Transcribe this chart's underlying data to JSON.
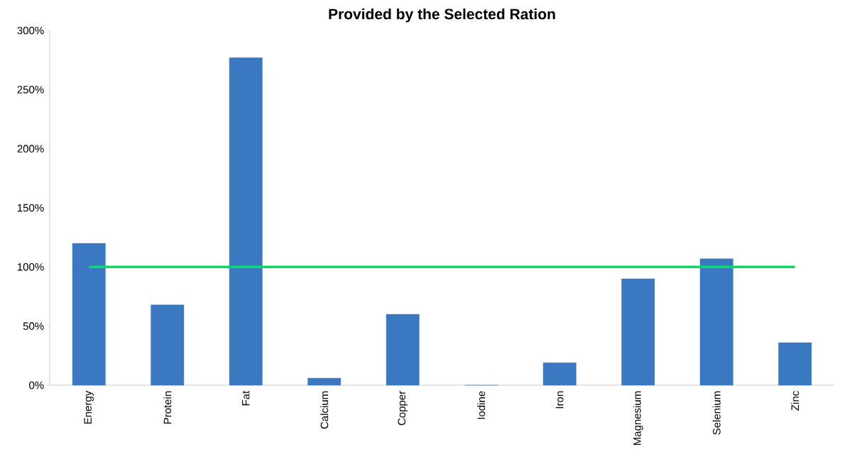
{
  "chart_data": {
    "type": "bar",
    "title": "Provided by the Selected Ration",
    "categories": [
      "Energy",
      "Protein",
      "Fat",
      "Calcium",
      "Copper",
      "Iodine",
      "Iron",
      "Magnesium",
      "Selenium",
      "Zinc"
    ],
    "values": [
      120,
      68,
      277,
      6,
      60,
      0,
      19,
      90,
      107,
      36
    ],
    "color": "#3a78c2",
    "ylim": [
      0,
      300
    ],
    "yticks": [
      {
        "value": 0,
        "label": "0%"
      },
      {
        "value": 50,
        "label": "50%"
      },
      {
        "value": 100,
        "label": "100%"
      },
      {
        "value": 150,
        "label": "150%"
      },
      {
        "value": 200,
        "label": "200%"
      },
      {
        "value": 250,
        "label": "250%"
      },
      {
        "value": 300,
        "label": "300%"
      }
    ],
    "ref_lines": [
      {
        "axis": "y",
        "value": 100,
        "color": "#00e060"
      }
    ]
  }
}
